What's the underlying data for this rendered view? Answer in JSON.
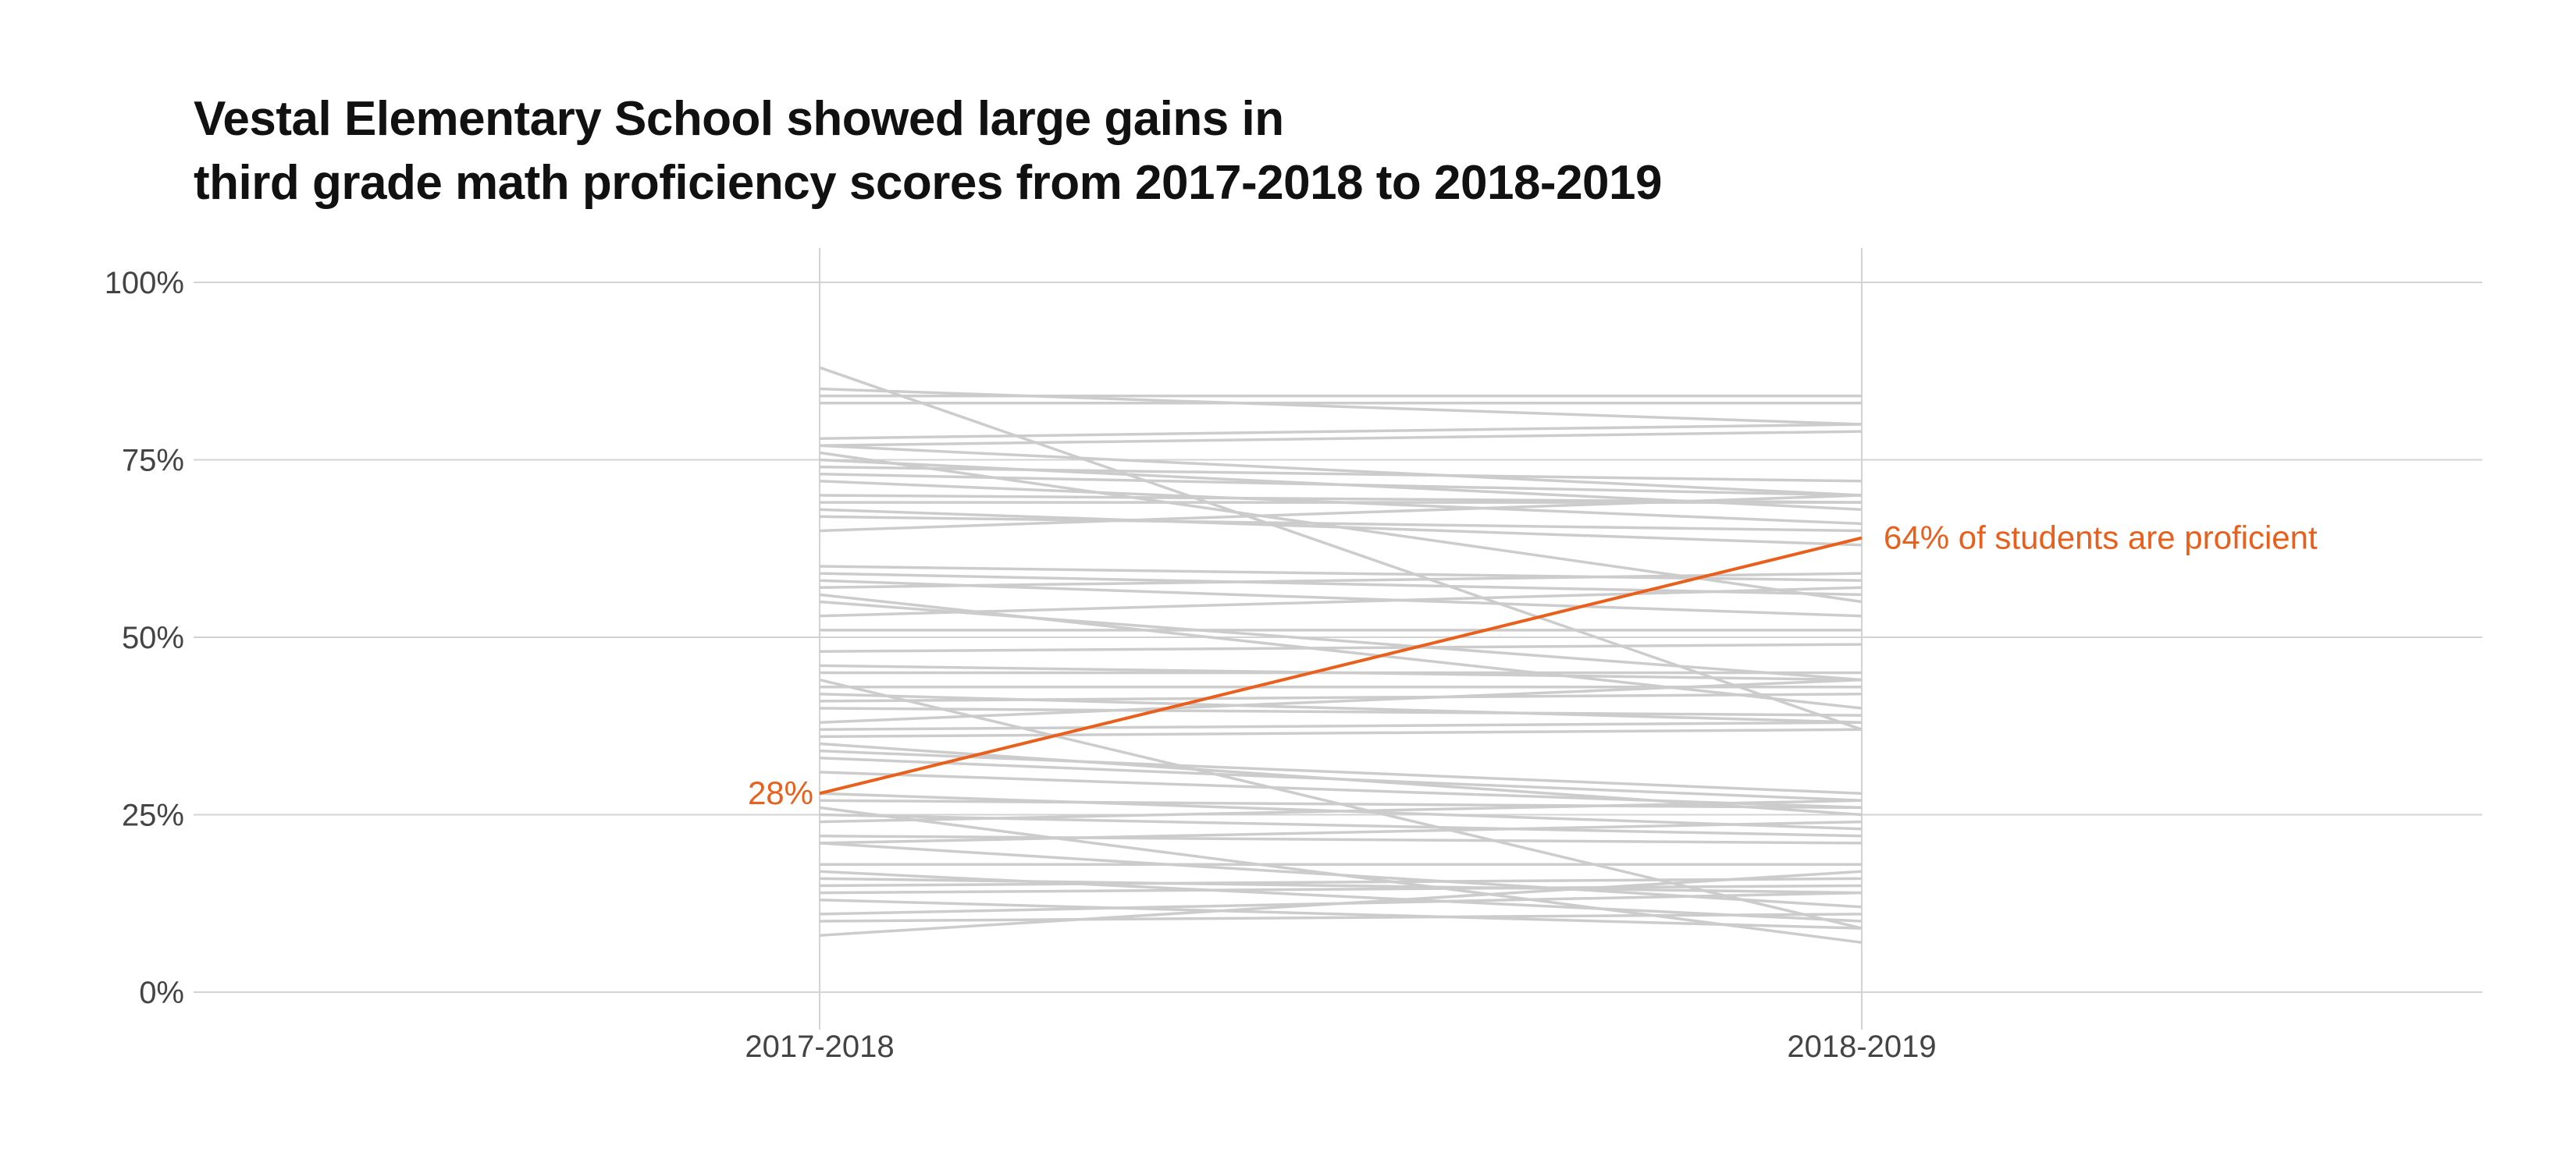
{
  "chart_data": {
    "type": "line",
    "title_lines": [
      "Vestal Elementary School showed large gains in",
      "third grade math proficiency scores from 2017-2018 to 2018-2019"
    ],
    "xlabel": "",
    "ylabel": "",
    "categories": [
      "2017-2018",
      "2018-2019"
    ],
    "ylim": [
      0,
      100
    ],
    "yticks": [
      0,
      25,
      50,
      75,
      100
    ],
    "ytick_labels": [
      "0%",
      "25%",
      "50%",
      "75%",
      "100%"
    ],
    "grid": true,
    "colors": {
      "highlight": "#E8601C",
      "background_lines": "#CCCCCC",
      "grid": "#D3D3D3"
    },
    "highlight": {
      "values": [
        28,
        64
      ],
      "start_label": "28%",
      "end_label": "64% of students are proficient"
    },
    "other_schools": [
      [
        88,
        37
      ],
      [
        85,
        80
      ],
      [
        84,
        84
      ],
      [
        83,
        83
      ],
      [
        78,
        80
      ],
      [
        77,
        70
      ],
      [
        77,
        79
      ],
      [
        76,
        55
      ],
      [
        75,
        68
      ],
      [
        74,
        72
      ],
      [
        73,
        70
      ],
      [
        72,
        66
      ],
      [
        70,
        69
      ],
      [
        69,
        69
      ],
      [
        68,
        63
      ],
      [
        67,
        65
      ],
      [
        65,
        70
      ],
      [
        60,
        58
      ],
      [
        59,
        56
      ],
      [
        58,
        53
      ],
      [
        57,
        59
      ],
      [
        56,
        40
      ],
      [
        55,
        44
      ],
      [
        53,
        57
      ],
      [
        51,
        51
      ],
      [
        48,
        49
      ],
      [
        46,
        44
      ],
      [
        45,
        45
      ],
      [
        43,
        43
      ],
      [
        42,
        38
      ],
      [
        41,
        42
      ],
      [
        40,
        39
      ],
      [
        38,
        44
      ],
      [
        37,
        38
      ],
      [
        36,
        37
      ],
      [
        35,
        25
      ],
      [
        34,
        28
      ],
      [
        33,
        27
      ],
      [
        31,
        26
      ],
      [
        28,
        23
      ],
      [
        27,
        26
      ],
      [
        25,
        22
      ],
      [
        24,
        27
      ],
      [
        22,
        21
      ],
      [
        21,
        24
      ],
      [
        21,
        12
      ],
      [
        18,
        18
      ],
      [
        17,
        10
      ],
      [
        16,
        14
      ],
      [
        15,
        16
      ],
      [
        14,
        15
      ],
      [
        13,
        9
      ],
      [
        11,
        14
      ],
      [
        10,
        11
      ],
      [
        8,
        17
      ],
      [
        26,
        7
      ],
      [
        44,
        9
      ]
    ]
  }
}
